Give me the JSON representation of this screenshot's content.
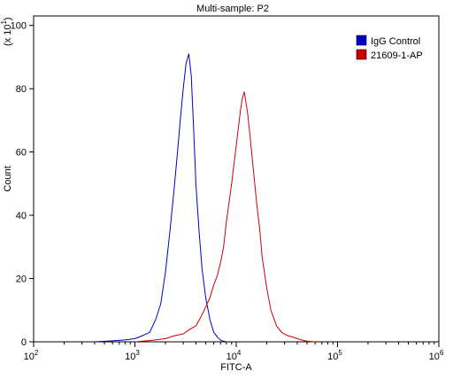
{
  "chart_data": {
    "type": "line",
    "title": "Multi-sample: P2",
    "xlabel": "FITC-A",
    "ylabel": "Count",
    "y_multiplier_base": "(x 10",
    "y_multiplier_exp": "1",
    "y_multiplier_close": ")",
    "x_scale": "log",
    "xlim": [
      100,
      1000000
    ],
    "ylim": [
      0,
      103
    ],
    "x_ticks": [
      {
        "value": 100,
        "base": "10",
        "exp": "2"
      },
      {
        "value": 1000,
        "base": "10",
        "exp": "3"
      },
      {
        "value": 10000,
        "base": "10",
        "exp": "4"
      },
      {
        "value": 100000,
        "base": "10",
        "exp": "5"
      },
      {
        "value": 1000000,
        "base": "10",
        "exp": "6"
      }
    ],
    "y_ticks": [
      0,
      20,
      40,
      60,
      80,
      100
    ],
    "legend_position": "top-right",
    "grid": false,
    "series": [
      {
        "name": "IgG Control",
        "color": "#0000cc",
        "x": [
          400,
          600,
          800,
          1000,
          1200,
          1400,
          1600,
          1800,
          2000,
          2200,
          2400,
          2600,
          2800,
          3000,
          3200,
          3400,
          3600,
          3800,
          4000,
          4300,
          4600,
          5000,
          5500,
          6000,
          6500,
          7000,
          7500,
          8000
        ],
        "y": [
          0,
          0.3,
          0.6,
          1,
          2,
          3,
          7,
          12,
          22,
          34,
          46,
          58,
          70,
          80,
          88,
          91,
          84,
          67,
          50,
          35,
          23,
          14,
          7,
          3,
          1.5,
          0.5,
          0.2,
          0
        ]
      },
      {
        "name": "21609-1-AP",
        "color": "#cc0000",
        "x": [
          1000,
          1500,
          2000,
          2500,
          3000,
          3500,
          4000,
          4500,
          5000,
          5500,
          6000,
          6500,
          7000,
          7500,
          8000,
          9000,
          10000,
          11000,
          11500,
          12000,
          13000,
          14000,
          15000,
          16000,
          17000,
          18000,
          20000,
          22000,
          25000,
          28000,
          32000,
          36000,
          40000,
          45000,
          50000,
          60000
        ],
        "y": [
          0,
          0.5,
          1,
          2,
          2.5,
          4,
          5,
          8,
          11,
          14,
          18,
          21,
          25,
          30,
          38,
          50,
          62,
          73,
          77,
          79,
          72,
          62,
          52,
          43,
          36,
          27,
          17,
          10,
          5,
          3,
          2,
          1.5,
          1,
          0.5,
          0.2,
          0
        ]
      }
    ]
  }
}
